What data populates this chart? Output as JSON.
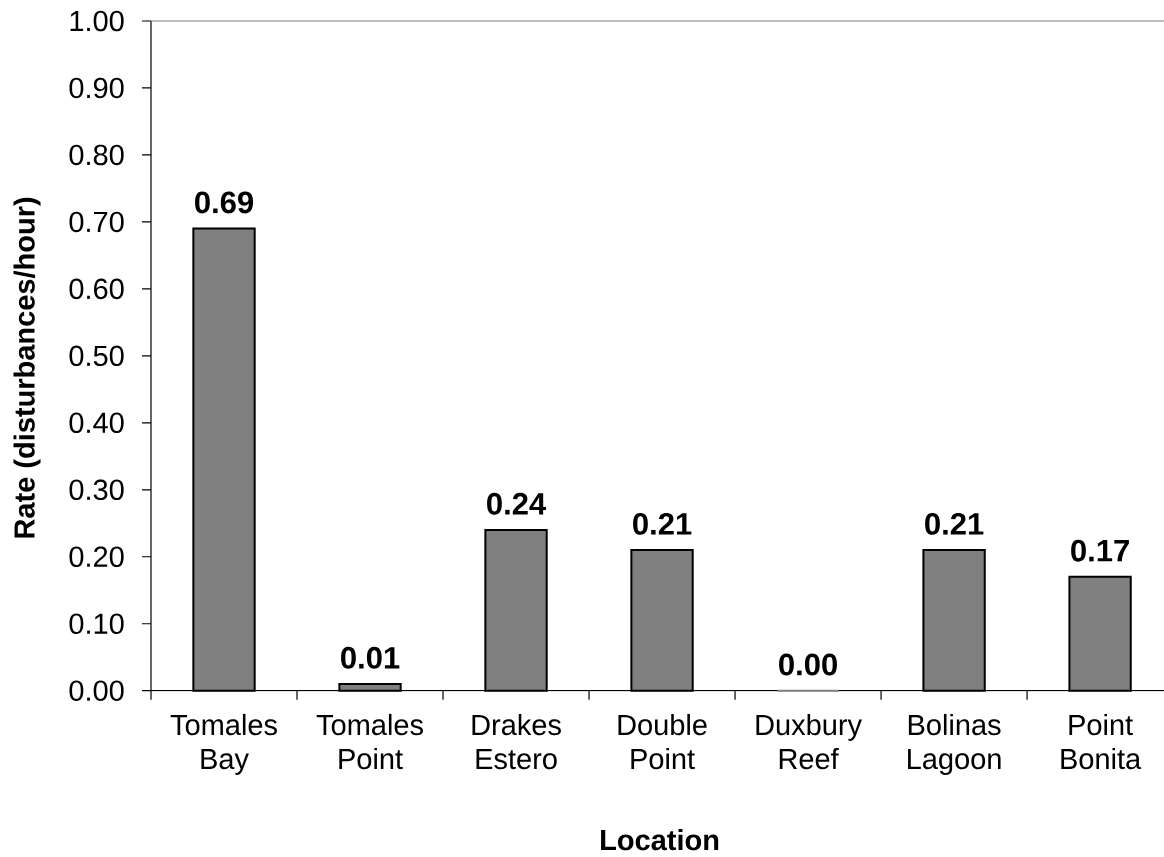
{
  "chart_data": {
    "type": "bar",
    "xlabel": "Location",
    "ylabel": "Rate (disturbances/hour)",
    "categories": [
      "Tomales Bay",
      "Tomales Point",
      "Drakes Estero",
      "Double Point",
      "Duxbury Reef",
      "Bolinas Lagoon",
      "Point Bonita"
    ],
    "values": [
      0.69,
      0.01,
      0.24,
      0.21,
      0.0,
      0.21,
      0.17
    ],
    "value_labels": [
      "0.69",
      "0.01",
      "0.24",
      "0.21",
      "0.00",
      "0.21",
      "0.17"
    ],
    "color": "#808080",
    "ylim": [
      0,
      1
    ],
    "yticks": [
      {
        "value": 0,
        "label": "0.00"
      },
      {
        "value": 0.1,
        "label": "0.10"
      },
      {
        "value": 0.2,
        "label": "0.20"
      },
      {
        "value": 0.3,
        "label": "0.30"
      },
      {
        "value": 0.4,
        "label": "0.40"
      },
      {
        "value": 0.5,
        "label": "0.50"
      },
      {
        "value": 0.6,
        "label": "0.60"
      },
      {
        "value": 0.7,
        "label": "0.70"
      },
      {
        "value": 0.8,
        "label": "0.80"
      },
      {
        "value": 0.9,
        "label": "0.90"
      },
      {
        "value": 1.0,
        "label": "1.00"
      }
    ]
  }
}
